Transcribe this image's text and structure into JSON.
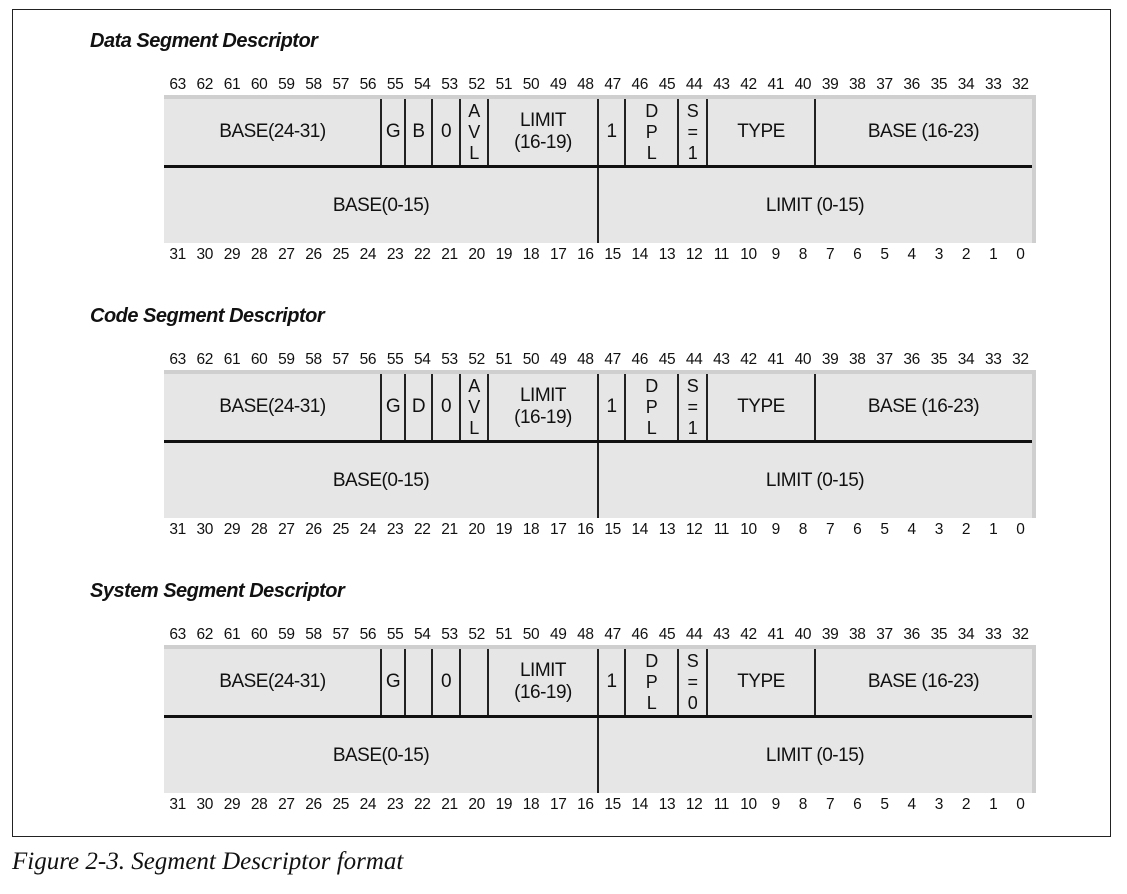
{
  "caption": "Figure 2-3. Segment Descriptor format",
  "bits_high": [
    "63",
    "62",
    "61",
    "60",
    "59",
    "58",
    "57",
    "56",
    "55",
    "54",
    "53",
    "52",
    "51",
    "50",
    "49",
    "48",
    "47",
    "46",
    "45",
    "44",
    "43",
    "42",
    "41",
    "40",
    "39",
    "38",
    "37",
    "36",
    "35",
    "34",
    "33",
    "32"
  ],
  "bits_low": [
    "31",
    "30",
    "29",
    "28",
    "27",
    "26",
    "25",
    "24",
    "23",
    "22",
    "21",
    "20",
    "19",
    "18",
    "17",
    "16",
    "15",
    "14",
    "13",
    "12",
    "11",
    "10",
    "9",
    "8",
    "7",
    "6",
    "5",
    "4",
    "3",
    "2",
    "1",
    "0"
  ],
  "descriptors": [
    {
      "title": "Data Segment Descriptor",
      "base_hi": "BASE(24-31)",
      "g": "G",
      "db": "B",
      "zero": "0",
      "avl": [
        "A",
        "V",
        "L"
      ],
      "limit_hi": [
        "LIMIT",
        "(16-19)"
      ],
      "present": "1",
      "dpl": [
        "D",
        "P",
        "L"
      ],
      "s": [
        "S",
        "=",
        "1"
      ],
      "type": "TYPE",
      "base_mid": "BASE (16-23)",
      "base_lo": "BASE(0-15)",
      "limit_lo": "LIMIT (0-15)"
    },
    {
      "title": "Code Segment Descriptor",
      "base_hi": "BASE(24-31)",
      "g": "G",
      "db": "D",
      "zero": "0",
      "avl": [
        "A",
        "V",
        "L"
      ],
      "limit_hi": [
        "LIMIT",
        "(16-19)"
      ],
      "present": "1",
      "dpl": [
        "D",
        "P",
        "L"
      ],
      "s": [
        "S",
        "=",
        "1"
      ],
      "type": "TYPE",
      "base_mid": "BASE (16-23)",
      "base_lo": "BASE(0-15)",
      "limit_lo": "LIMIT (0-15)"
    },
    {
      "title": "System Segment Descriptor",
      "base_hi": "BASE(24-31)",
      "g": "G",
      "db": "",
      "zero": "0",
      "avl": [
        "",
        "",
        ""
      ],
      "limit_hi": [
        "LIMIT",
        "(16-19)"
      ],
      "present": "1",
      "dpl": [
        "D",
        "P",
        "L"
      ],
      "s": [
        "S",
        "=",
        "0"
      ],
      "type": "TYPE",
      "base_mid": "BASE (16-23)",
      "base_lo": "BASE(0-15)",
      "limit_lo": "LIMIT (0-15)"
    }
  ]
}
